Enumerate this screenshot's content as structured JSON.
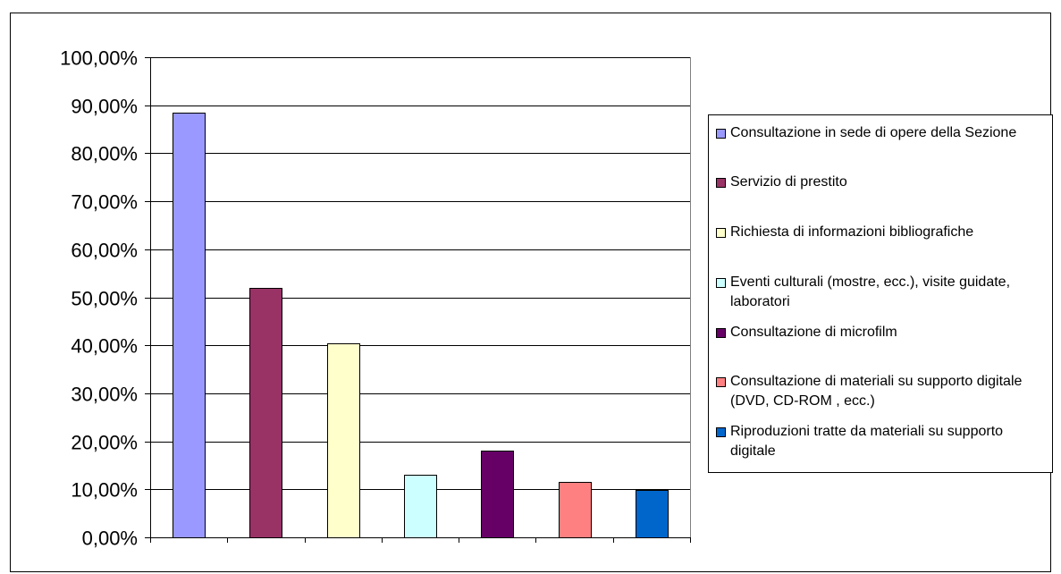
{
  "chart_data": {
    "type": "bar",
    "title": "",
    "xlabel": "",
    "ylabel": "",
    "ylim": [
      0,
      100
    ],
    "yticks": [
      "0,00%",
      "10,00%",
      "20,00%",
      "30,00%",
      "40,00%",
      "50,00%",
      "60,00%",
      "70,00%",
      "80,00%",
      "90,00%",
      "100,00%"
    ],
    "grid": true,
    "legend_position": "right",
    "series": [
      {
        "name": "Consultazione in sede di opere della Sezione",
        "value": 88.5,
        "color": "#9999FF"
      },
      {
        "name": "Servizio di prestito",
        "value": 52.0,
        "color": "#993366"
      },
      {
        "name": "Richiesta di informazioni bibliografiche",
        "value": 40.5,
        "color": "#FFFFCC"
      },
      {
        "name": "Eventi culturali (mostre, ecc.), visite guidate, laboratori",
        "value": 13.0,
        "color": "#CCFFFF"
      },
      {
        "name": "Consultazione di microfilm",
        "value": 18.0,
        "color": "#660066"
      },
      {
        "name": "Consultazione di materiali su supporto digitale (DVD, CD-ROM , ecc.)",
        "value": 11.5,
        "color": "#FF8080"
      },
      {
        "name": "Riproduzioni tratte da materiali su supporto digitale",
        "value": 9.8,
        "color": "#0066CC"
      }
    ]
  }
}
